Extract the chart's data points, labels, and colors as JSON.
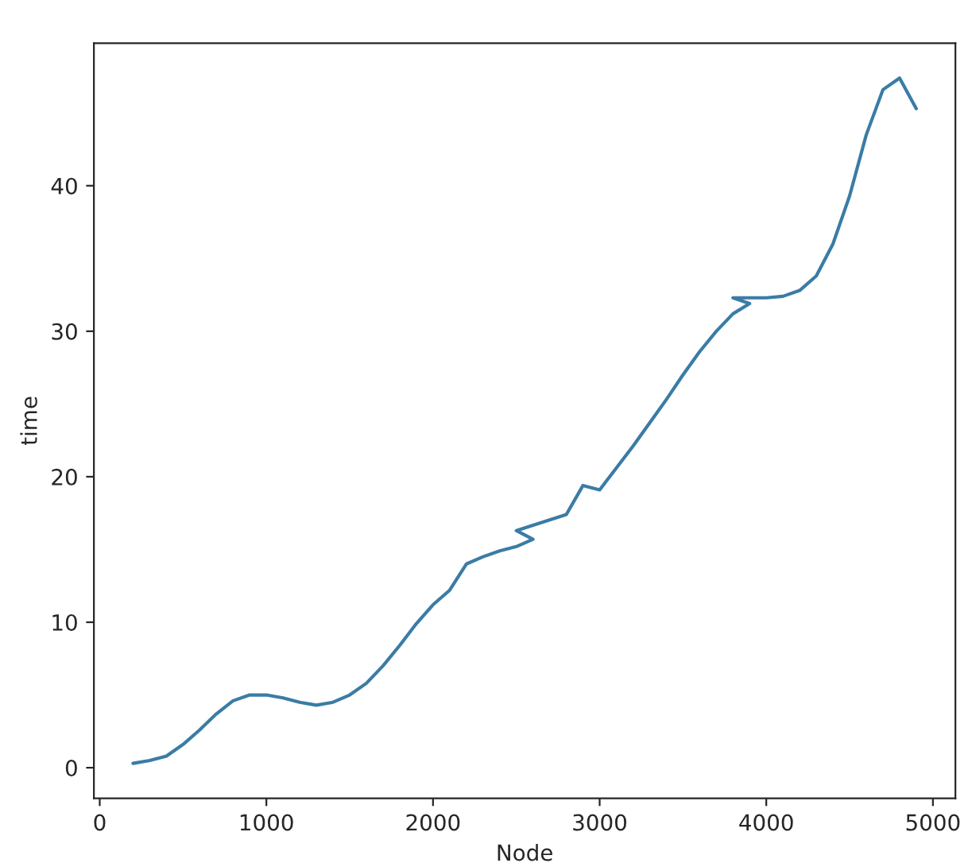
{
  "chart_data": {
    "type": "line",
    "xlabel": "Node",
    "ylabel": "time",
    "series": [
      {
        "color": "#3a7ca5",
        "x": [
          200,
          300,
          400,
          500,
          600,
          700,
          800,
          900,
          1000,
          1100,
          1200,
          1300,
          1400,
          1500,
          1600,
          1700,
          1800,
          1900,
          2000,
          2100,
          2200,
          2300,
          2400,
          2500,
          2600,
          2500,
          2800,
          2900,
          3000,
          3100,
          3200,
          3300,
          3400,
          3500,
          3600,
          3700,
          3800,
          3900,
          3800,
          4000,
          4100,
          4200,
          4300,
          4400,
          4500,
          4600,
          4700,
          4800,
          4900
        ],
        "values": [
          0.3,
          0.5,
          0.8,
          1.6,
          2.6,
          3.7,
          4.6,
          5.0,
          5.0,
          4.8,
          4.5,
          4.3,
          4.5,
          5.0,
          5.8,
          7.0,
          8.4,
          9.9,
          11.2,
          12.2,
          14.0,
          14.5,
          14.9,
          15.2,
          15.7,
          16.3,
          17.4,
          19.4,
          19.1,
          20.6,
          22.1,
          23.7,
          25.3,
          27.0,
          28.6,
          30.0,
          31.2,
          31.9,
          32.3,
          32.3,
          32.4,
          32.8,
          33.8,
          36.0,
          39.3,
          43.5,
          46.6,
          47.4,
          45.3
        ]
      }
    ],
    "xlim": [
      -35,
      5135
    ],
    "ylim": [
      -2.1,
      49.8
    ],
    "xticks": [
      0,
      1000,
      2000,
      3000,
      4000,
      5000
    ],
    "yticks": [
      0,
      10,
      20,
      30,
      40
    ],
    "grid": false,
    "marker": "none",
    "line_style": "solid"
  }
}
